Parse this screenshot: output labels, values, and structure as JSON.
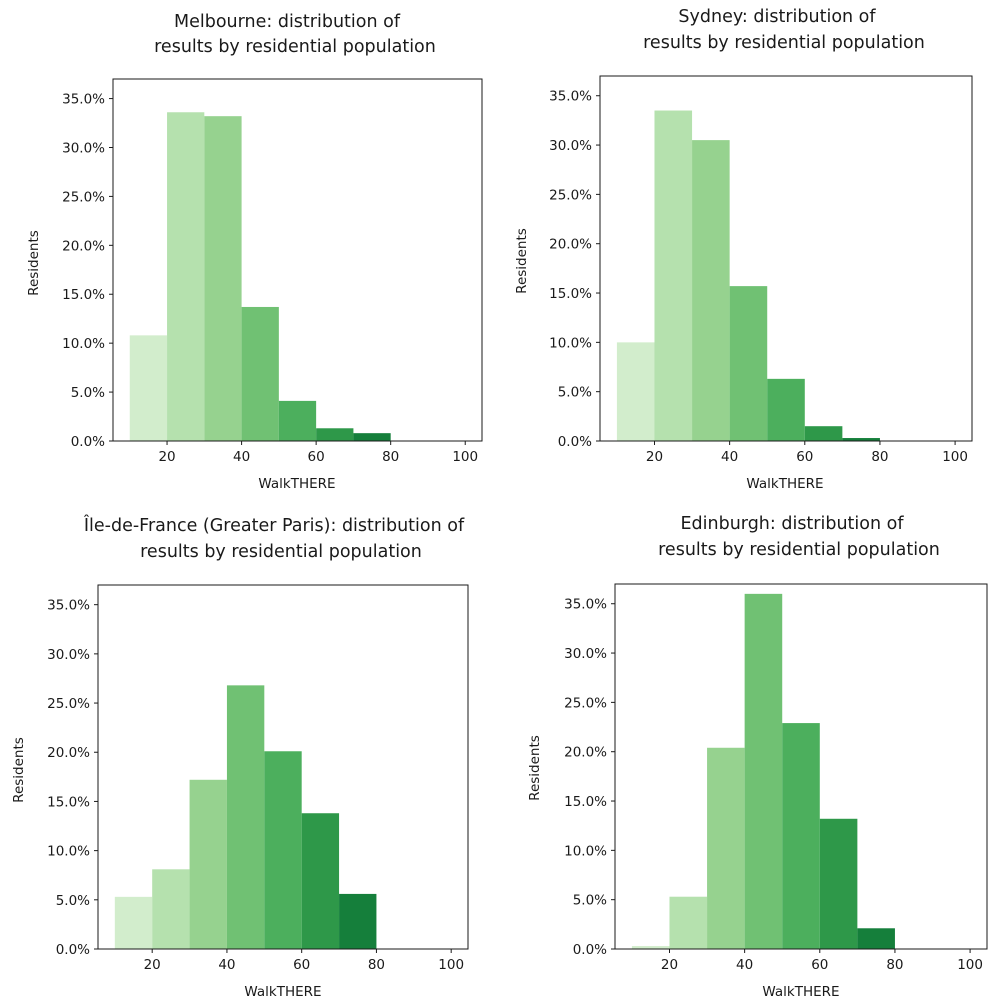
{
  "figure": {
    "colors": [
      "#d2edcc",
      "#b5e1ae",
      "#96d28f",
      "#70c173",
      "#4caf5d",
      "#2e9849",
      "#157f3b"
    ]
  },
  "chart_data": [
    {
      "type": "bar",
      "title_line1": "Melbourne: distribution of",
      "title_line2": "results by residential population",
      "xlabel": "WalkTHERE",
      "ylabel": "Residents",
      "xlim": [
        5.5,
        104.5
      ],
      "ylim": [
        0,
        0.37
      ],
      "xticks": [
        20,
        40,
        60,
        80,
        100
      ],
      "yticks": [
        0,
        0.05,
        0.1,
        0.15,
        0.2,
        0.25,
        0.3,
        0.35
      ],
      "ytick_labels": [
        "0.0%",
        "5.0%",
        "10.0%",
        "15.0%",
        "20.0%",
        "25.0%",
        "30.0%",
        "35.0%"
      ],
      "bin_edges": [
        10,
        20,
        30,
        40,
        50,
        60,
        70,
        80,
        90,
        100
      ],
      "values": [
        0.108,
        0.336,
        0.332,
        0.137,
        0.041,
        0.013,
        0.008,
        0.0,
        0.0
      ]
    },
    {
      "type": "bar",
      "title_line1": "Sydney: distribution of",
      "title_line2": "results by residential population",
      "xlabel": "WalkTHERE",
      "ylabel": "Residents",
      "xlim": [
        5.5,
        104.5
      ],
      "ylim": [
        0,
        0.37
      ],
      "xticks": [
        20,
        40,
        60,
        80,
        100
      ],
      "yticks": [
        0,
        0.05,
        0.1,
        0.15,
        0.2,
        0.25,
        0.3,
        0.35
      ],
      "ytick_labels": [
        "0.0%",
        "5.0%",
        "10.0%",
        "15.0%",
        "20.0%",
        "25.0%",
        "30.0%",
        "35.0%"
      ],
      "bin_edges": [
        10,
        20,
        30,
        40,
        50,
        60,
        70,
        80,
        90,
        100
      ],
      "values": [
        0.1,
        0.335,
        0.305,
        0.157,
        0.063,
        0.015,
        0.003,
        0.0,
        0.0
      ]
    },
    {
      "type": "bar",
      "title_line1": "Île-de-France (Greater Paris): distribution of",
      "title_line2": "results by residential population",
      "xlabel": "WalkTHERE",
      "ylabel": "Residents",
      "xlim": [
        5.5,
        104.5
      ],
      "ylim": [
        0,
        0.37
      ],
      "xticks": [
        20,
        40,
        60,
        80,
        100
      ],
      "yticks": [
        0,
        0.05,
        0.1,
        0.15,
        0.2,
        0.25,
        0.3,
        0.35
      ],
      "ytick_labels": [
        "0.0%",
        "5.0%",
        "10.0%",
        "15.0%",
        "20.0%",
        "25.0%",
        "30.0%",
        "35.0%"
      ],
      "bin_edges": [
        10,
        20,
        30,
        40,
        50,
        60,
        70,
        80,
        90,
        100
      ],
      "values": [
        0.053,
        0.081,
        0.172,
        0.268,
        0.201,
        0.138,
        0.056,
        0.0,
        0.0
      ]
    },
    {
      "type": "bar",
      "title_line1": "Edinburgh: distribution of",
      "title_line2": "results by residential population",
      "xlabel": "WalkTHERE",
      "ylabel": "Residents",
      "xlim": [
        5.5,
        104.5
      ],
      "ylim": [
        0,
        0.37
      ],
      "xticks": [
        20,
        40,
        60,
        80,
        100
      ],
      "yticks": [
        0,
        0.05,
        0.1,
        0.15,
        0.2,
        0.25,
        0.3,
        0.35
      ],
      "ytick_labels": [
        "0.0%",
        "5.0%",
        "10.0%",
        "15.0%",
        "20.0%",
        "25.0%",
        "30.0%",
        "35.0%"
      ],
      "bin_edges": [
        10,
        20,
        30,
        40,
        50,
        60,
        70,
        80,
        90,
        100
      ],
      "values": [
        0.003,
        0.053,
        0.204,
        0.36,
        0.229,
        0.132,
        0.021,
        0.0,
        0.0
      ]
    }
  ]
}
